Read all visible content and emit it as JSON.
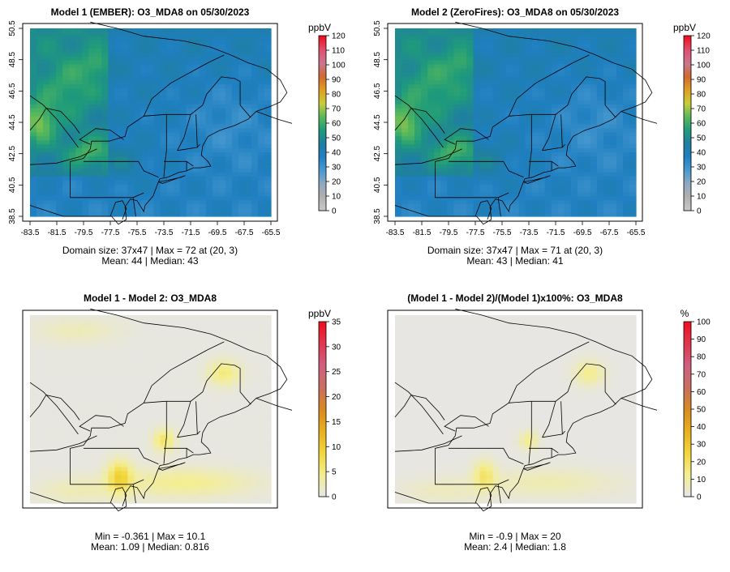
{
  "panels": [
    {
      "id": "model1",
      "title": "Model 1 (EMBER): O3_MDA8 on 05/30/2023",
      "stats_line1": "Domain size: 37x47 | Max = 72 at (20, 3)",
      "stats_line2": "Mean: 44 |  Median: 43",
      "colorbar": {
        "unit": "ppbV",
        "ticks": [
          "0",
          "10",
          "20",
          "30",
          "40",
          "50",
          "60",
          "70",
          "80",
          "90",
          "100",
          "110",
          "120"
        ],
        "min": 0,
        "max": 120,
        "colors": [
          "#c8c8c8",
          "#b0b0b0",
          "#8fa8c0",
          "#4a9ad0",
          "#1f7fc0",
          "#1f7fa0",
          "#1f9b7a",
          "#58b95a",
          "#c9cc3a",
          "#e0a020",
          "#d06a30",
          "#c87890",
          "#e05070",
          "#f01020"
        ]
      },
      "map": {
        "type": "o3"
      }
    },
    {
      "id": "model2",
      "title": "Model 2 (ZeroFires): O3_MDA8 on 05/30/2023",
      "stats_line1": "Domain size: 37x47 | Max = 71 at (20, 3)",
      "stats_line2": "Mean: 43 |  Median: 41",
      "colorbar": {
        "unit": "ppbV",
        "ticks": [
          "0",
          "10",
          "20",
          "30",
          "40",
          "50",
          "60",
          "70",
          "80",
          "90",
          "100",
          "110",
          "120"
        ],
        "min": 0,
        "max": 120,
        "colors": [
          "#c8c8c8",
          "#b0b0b0",
          "#8fa8c0",
          "#4a9ad0",
          "#1f7fc0",
          "#1f7fa0",
          "#1f9b7a",
          "#58b95a",
          "#c9cc3a",
          "#e0a020",
          "#d06a30",
          "#c87890",
          "#e05070",
          "#f01020"
        ]
      },
      "map": {
        "type": "o3"
      }
    },
    {
      "id": "diff",
      "title": "Model 1 - Model 2: O3_MDA8",
      "stats_line1": "Min = -0.361 | Max = 10.1",
      "stats_line2": "Mean: 1.09 |  Median: 0.816",
      "colorbar": {
        "unit": "ppbV",
        "ticks": [
          "0",
          "5",
          "10",
          "15",
          "20",
          "25",
          "30",
          "35"
        ],
        "min": 0,
        "max": 35,
        "colors": [
          "#e6e6e6",
          "#f4ee90",
          "#f2d63a",
          "#e8b020",
          "#d88a20",
          "#c87060",
          "#d06080",
          "#e03850",
          "#f01020"
        ]
      },
      "map": {
        "type": "diff"
      }
    },
    {
      "id": "pct",
      "title": "(Model 1 - Model 2)/(Model 1)x100%: O3_MDA8",
      "stats_line1": "Min = -0.9 | Max = 20",
      "stats_line2": "Mean: 2.4 |  Median: 1.8",
      "colorbar": {
        "unit": "%",
        "ticks": [
          "0",
          "10",
          "20",
          "30",
          "40",
          "50",
          "60",
          "70",
          "80",
          "90",
          "100"
        ],
        "min": 0,
        "max": 100,
        "colors": [
          "#e6e6e6",
          "#f4ee90",
          "#f2d63a",
          "#e8b020",
          "#d88a20",
          "#c87060",
          "#d06080",
          "#e03850",
          "#f01020"
        ]
      },
      "map": {
        "type": "pct"
      }
    }
  ],
  "axes": {
    "x_ticks": [
      "-83.5",
      "-81.5",
      "-79.5",
      "-77.5",
      "-75.5",
      "-73.5",
      "-71.5",
      "-69.5",
      "-67.5",
      "-65.5"
    ],
    "y_ticks": [
      "38.5",
      "40.5",
      "42.5",
      "44.5",
      "46.5",
      "48.5",
      "50.5"
    ]
  }
}
